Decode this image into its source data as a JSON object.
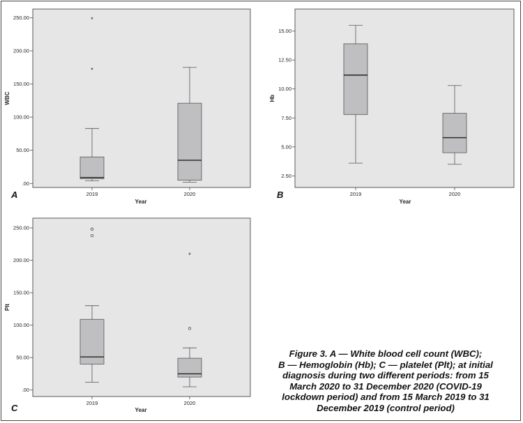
{
  "caption": {
    "lines": [
      "Figure 3. A — White blood cell count (WBC);",
      "B — Hemoglobin (Hb); C — platelet (Plt); at initial",
      "diagnosis during two different periods: from 15",
      "March 2020 to 31 December 2020 (COVID-19",
      "lockdown period) and from 15 March 2019 to 31",
      "December 2019 (control period)"
    ]
  },
  "colors": {
    "plot_bg": "#e6e6e6",
    "box_fill": "#bfbfc2",
    "line": "#555555",
    "panel_label": "#111111"
  },
  "chart_data": [
    {
      "panel": "A",
      "type": "boxplot",
      "xlabel": "Year",
      "ylabel": "WBC",
      "categories": [
        "2019",
        "2020"
      ],
      "yticks": [
        ".00",
        "50.00",
        "100.00",
        "150.00",
        "200.00",
        "250.00"
      ],
      "ytick_values": [
        0,
        50,
        100,
        150,
        200,
        250
      ],
      "ylim": [
        -6,
        263
      ],
      "boxes": [
        {
          "q1": 7,
          "median": 9,
          "q3": 40,
          "whisker_low": 4,
          "whisker_high": 83,
          "outliers": [
            {
              "value": 171,
              "marker": "star"
            },
            {
              "value": 247,
              "marker": "star"
            }
          ]
        },
        {
          "q1": 5,
          "median": 35,
          "q3": 121,
          "whisker_low": 2,
          "whisker_high": 175,
          "outliers": []
        }
      ]
    },
    {
      "panel": "B",
      "type": "boxplot",
      "xlabel": "Year",
      "ylabel": "Hb",
      "categories": [
        "2019",
        "2020"
      ],
      "yticks": [
        "2.50",
        "5.00",
        "7.50",
        "10.00",
        "12.50",
        "15.00"
      ],
      "ytick_values": [
        2.5,
        5,
        7.5,
        10,
        12.5,
        15
      ],
      "ylim": [
        1.5,
        16.9
      ],
      "boxes": [
        {
          "q1": 7.8,
          "median": 11.2,
          "q3": 13.9,
          "whisker_low": 3.6,
          "whisker_high": 15.5,
          "outliers": []
        },
        {
          "q1": 4.5,
          "median": 5.8,
          "q3": 7.9,
          "whisker_low": 3.5,
          "whisker_high": 10.3,
          "outliers": []
        }
      ]
    },
    {
      "panel": "C",
      "type": "boxplot",
      "xlabel": "Year",
      "ylabel": "Plt",
      "categories": [
        "2019",
        "2020"
      ],
      "yticks": [
        ".00",
        "50.00",
        "100.00",
        "150.00",
        "200.00",
        "250.00"
      ],
      "ytick_values": [
        0,
        50,
        100,
        150,
        200,
        250
      ],
      "ylim": [
        -10,
        265
      ],
      "boxes": [
        {
          "q1": 40,
          "median": 51,
          "q3": 109,
          "whisker_low": 12,
          "whisker_high": 130,
          "outliers": [
            {
              "value": 238,
              "marker": "circle"
            },
            {
              "value": 248,
              "marker": "circle"
            }
          ]
        },
        {
          "q1": 20,
          "median": 25,
          "q3": 49,
          "whisker_low": 5,
          "whisker_high": 65,
          "outliers": [
            {
              "value": 95,
              "marker": "circle"
            },
            {
              "value": 208,
              "marker": "star"
            }
          ]
        }
      ]
    }
  ]
}
